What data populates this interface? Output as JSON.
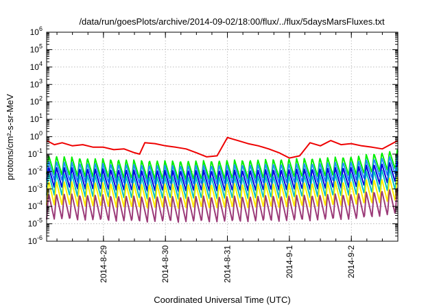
{
  "chart_data": {
    "type": "line",
    "title": "/data/run/goesPlots/archive/2014-09-02/18:00/flux/../flux/5daysMarsFluxes.txt",
    "xlabel": "Coordinated Universal Time (UTC)",
    "ylabel": "protons/cm²-s-sr-MeV",
    "yscale": "log",
    "ylim": [
      "1e-6",
      "1e6"
    ],
    "y_tick_labels": [
      {
        "base": "10",
        "exp": "-6"
      },
      {
        "base": "10",
        "exp": "-5"
      },
      {
        "base": "10",
        "exp": "-4"
      },
      {
        "base": "10",
        "exp": "-3"
      },
      {
        "base": "10",
        "exp": "-2"
      },
      {
        "base": "10",
        "exp": "-1"
      },
      {
        "base": "10",
        "exp": "0"
      },
      {
        "base": "10",
        "exp": "1"
      },
      {
        "base": "10",
        "exp": "2"
      },
      {
        "base": "10",
        "exp": "3"
      },
      {
        "base": "10",
        "exp": "4"
      },
      {
        "base": "10",
        "exp": "5"
      },
      {
        "base": "10",
        "exp": "6"
      }
    ],
    "xlim": [
      "2014-08-28 02:00",
      "2014-09-02 18:00"
    ],
    "x_tick_labels": [
      "2014-8-29",
      "2014-8-30",
      "2014-8-31",
      "2014-9-1",
      "2014-9-2"
    ],
    "x_tick_dates": [
      "2014-08-29",
      "2014-08-30",
      "2014-08-31",
      "2014-09-01",
      "2014-09-02"
    ],
    "grid": true,
    "legend": "none",
    "series": [
      {
        "color": "#ee0000",
        "x": [
          "2014-08-28 02:00",
          "2014-08-28 05:00",
          "2014-08-28 08:00",
          "2014-08-28 12:00",
          "2014-08-28 16:00",
          "2014-08-28 20:00",
          "2014-08-29 00:00",
          "2014-08-29 04:00",
          "2014-08-29 08:00",
          "2014-08-29 12:00",
          "2014-08-29 14:00",
          "2014-08-29 16:00",
          "2014-08-29 20:00",
          "2014-08-30 00:00",
          "2014-08-30 04:00",
          "2014-08-30 08:00",
          "2014-08-30 12:00",
          "2014-08-30 16:00",
          "2014-08-30 20:00",
          "2014-08-31 00:00",
          "2014-08-31 04:00",
          "2014-08-31 08:00",
          "2014-08-31 12:00",
          "2014-08-31 16:00",
          "2014-08-31 20:00",
          "2014-09-01 00:00",
          "2014-09-01 04:00",
          "2014-09-01 08:00",
          "2014-09-01 12:00",
          "2014-09-01 16:00",
          "2014-09-01 20:00",
          "2014-09-02 00:00",
          "2014-09-02 04:00",
          "2014-09-02 08:00",
          "2014-09-02 12:00",
          "2014-09-02 18:00"
        ],
        "values": [
          0.6,
          0.35,
          0.45,
          0.3,
          0.35,
          0.25,
          0.25,
          0.18,
          0.2,
          0.12,
          0.1,
          0.45,
          0.4,
          0.3,
          0.25,
          0.2,
          0.12,
          0.07,
          0.08,
          0.9,
          0.6,
          0.4,
          0.3,
          0.2,
          0.12,
          0.06,
          0.08,
          0.45,
          0.3,
          0.6,
          0.35,
          0.4,
          0.3,
          0.25,
          0.2,
          0.6
        ]
      },
      {
        "color": "#00ee00",
        "x": [
          "2014-08-28 02:00",
          "2014-08-28 14:00",
          "2014-08-29 02:00",
          "2014-08-29 14:00",
          "2014-08-30 02:00",
          "2014-08-30 14:00",
          "2014-08-31 02:00",
          "2014-08-31 14:00",
          "2014-09-01 02:00",
          "2014-09-01 14:00",
          "2014-09-02 02:00",
          "2014-09-02 18:00"
        ],
        "values": [
          0.025,
          0.018,
          0.015,
          0.013,
          0.012,
          0.012,
          0.013,
          0.014,
          0.016,
          0.018,
          0.022,
          0.05
        ]
      },
      {
        "color": "#1f8fff",
        "x": [
          "2014-08-28 02:00",
          "2014-08-28 14:00",
          "2014-08-29 02:00",
          "2014-08-29 14:00",
          "2014-08-30 02:00",
          "2014-08-30 14:00",
          "2014-08-31 02:00",
          "2014-08-31 14:00",
          "2014-09-01 02:00",
          "2014-09-01 14:00",
          "2014-09-02 02:00",
          "2014-09-02 18:00"
        ],
        "values": [
          0.012,
          0.009,
          0.008,
          0.007,
          0.0065,
          0.0065,
          0.007,
          0.0075,
          0.008,
          0.009,
          0.011,
          0.025
        ]
      },
      {
        "color": "#0000dd",
        "x": [
          "2014-08-28 02:00",
          "2014-08-28 14:00",
          "2014-08-29 02:00",
          "2014-08-29 14:00",
          "2014-08-30 02:00",
          "2014-08-30 14:00",
          "2014-08-31 02:00",
          "2014-08-31 14:00",
          "2014-09-01 02:00",
          "2014-09-01 14:00",
          "2014-09-02 02:00",
          "2014-09-02 18:00"
        ],
        "values": [
          0.005,
          0.004,
          0.0035,
          0.003,
          0.003,
          0.003,
          0.003,
          0.0032,
          0.0035,
          0.004,
          0.005,
          0.01
        ]
      },
      {
        "color": "#00c0c0",
        "x": [
          "2014-08-28 02:00",
          "2014-08-28 14:00",
          "2014-08-29 02:00",
          "2014-08-29 14:00",
          "2014-08-30 02:00",
          "2014-08-30 14:00",
          "2014-08-31 02:00",
          "2014-08-31 14:00",
          "2014-09-01 02:00",
          "2014-09-01 14:00",
          "2014-09-02 02:00",
          "2014-09-02 18:00"
        ],
        "values": [
          0.002,
          0.0016,
          0.0014,
          0.0012,
          0.0012,
          0.0012,
          0.0012,
          0.0013,
          0.0014,
          0.0016,
          0.002,
          0.004
        ]
      },
      {
        "color": "#ffee00",
        "x": [
          "2014-08-28 02:00",
          "2014-08-28 14:00",
          "2014-08-29 02:00",
          "2014-08-29 14:00",
          "2014-08-30 02:00",
          "2014-08-30 14:00",
          "2014-08-31 02:00",
          "2014-08-31 14:00",
          "2014-09-01 02:00",
          "2014-09-01 14:00",
          "2014-09-02 02:00",
          "2014-09-02 18:00"
        ],
        "values": [
          0.0006,
          0.0005,
          0.00045,
          0.0004,
          0.0004,
          0.0004,
          0.0004,
          0.00042,
          0.00045,
          0.0005,
          0.0006,
          0.001
        ]
      },
      {
        "color": "#9b3a78",
        "x": [
          "2014-08-28 02:00",
          "2014-08-28 14:00",
          "2014-08-29 02:00",
          "2014-08-29 14:00",
          "2014-08-30 02:00",
          "2014-08-30 14:00",
          "2014-08-31 02:00",
          "2014-08-31 14:00",
          "2014-09-01 02:00",
          "2014-09-01 14:00",
          "2014-09-02 02:00",
          "2014-09-02 18:00"
        ],
        "values": [
          0.0001,
          9e-05,
          8e-05,
          7e-05,
          7e-05,
          7e-05,
          7e-05,
          7.5e-05,
          8e-05,
          9e-05,
          0.0001,
          0.0002
        ]
      }
    ]
  }
}
